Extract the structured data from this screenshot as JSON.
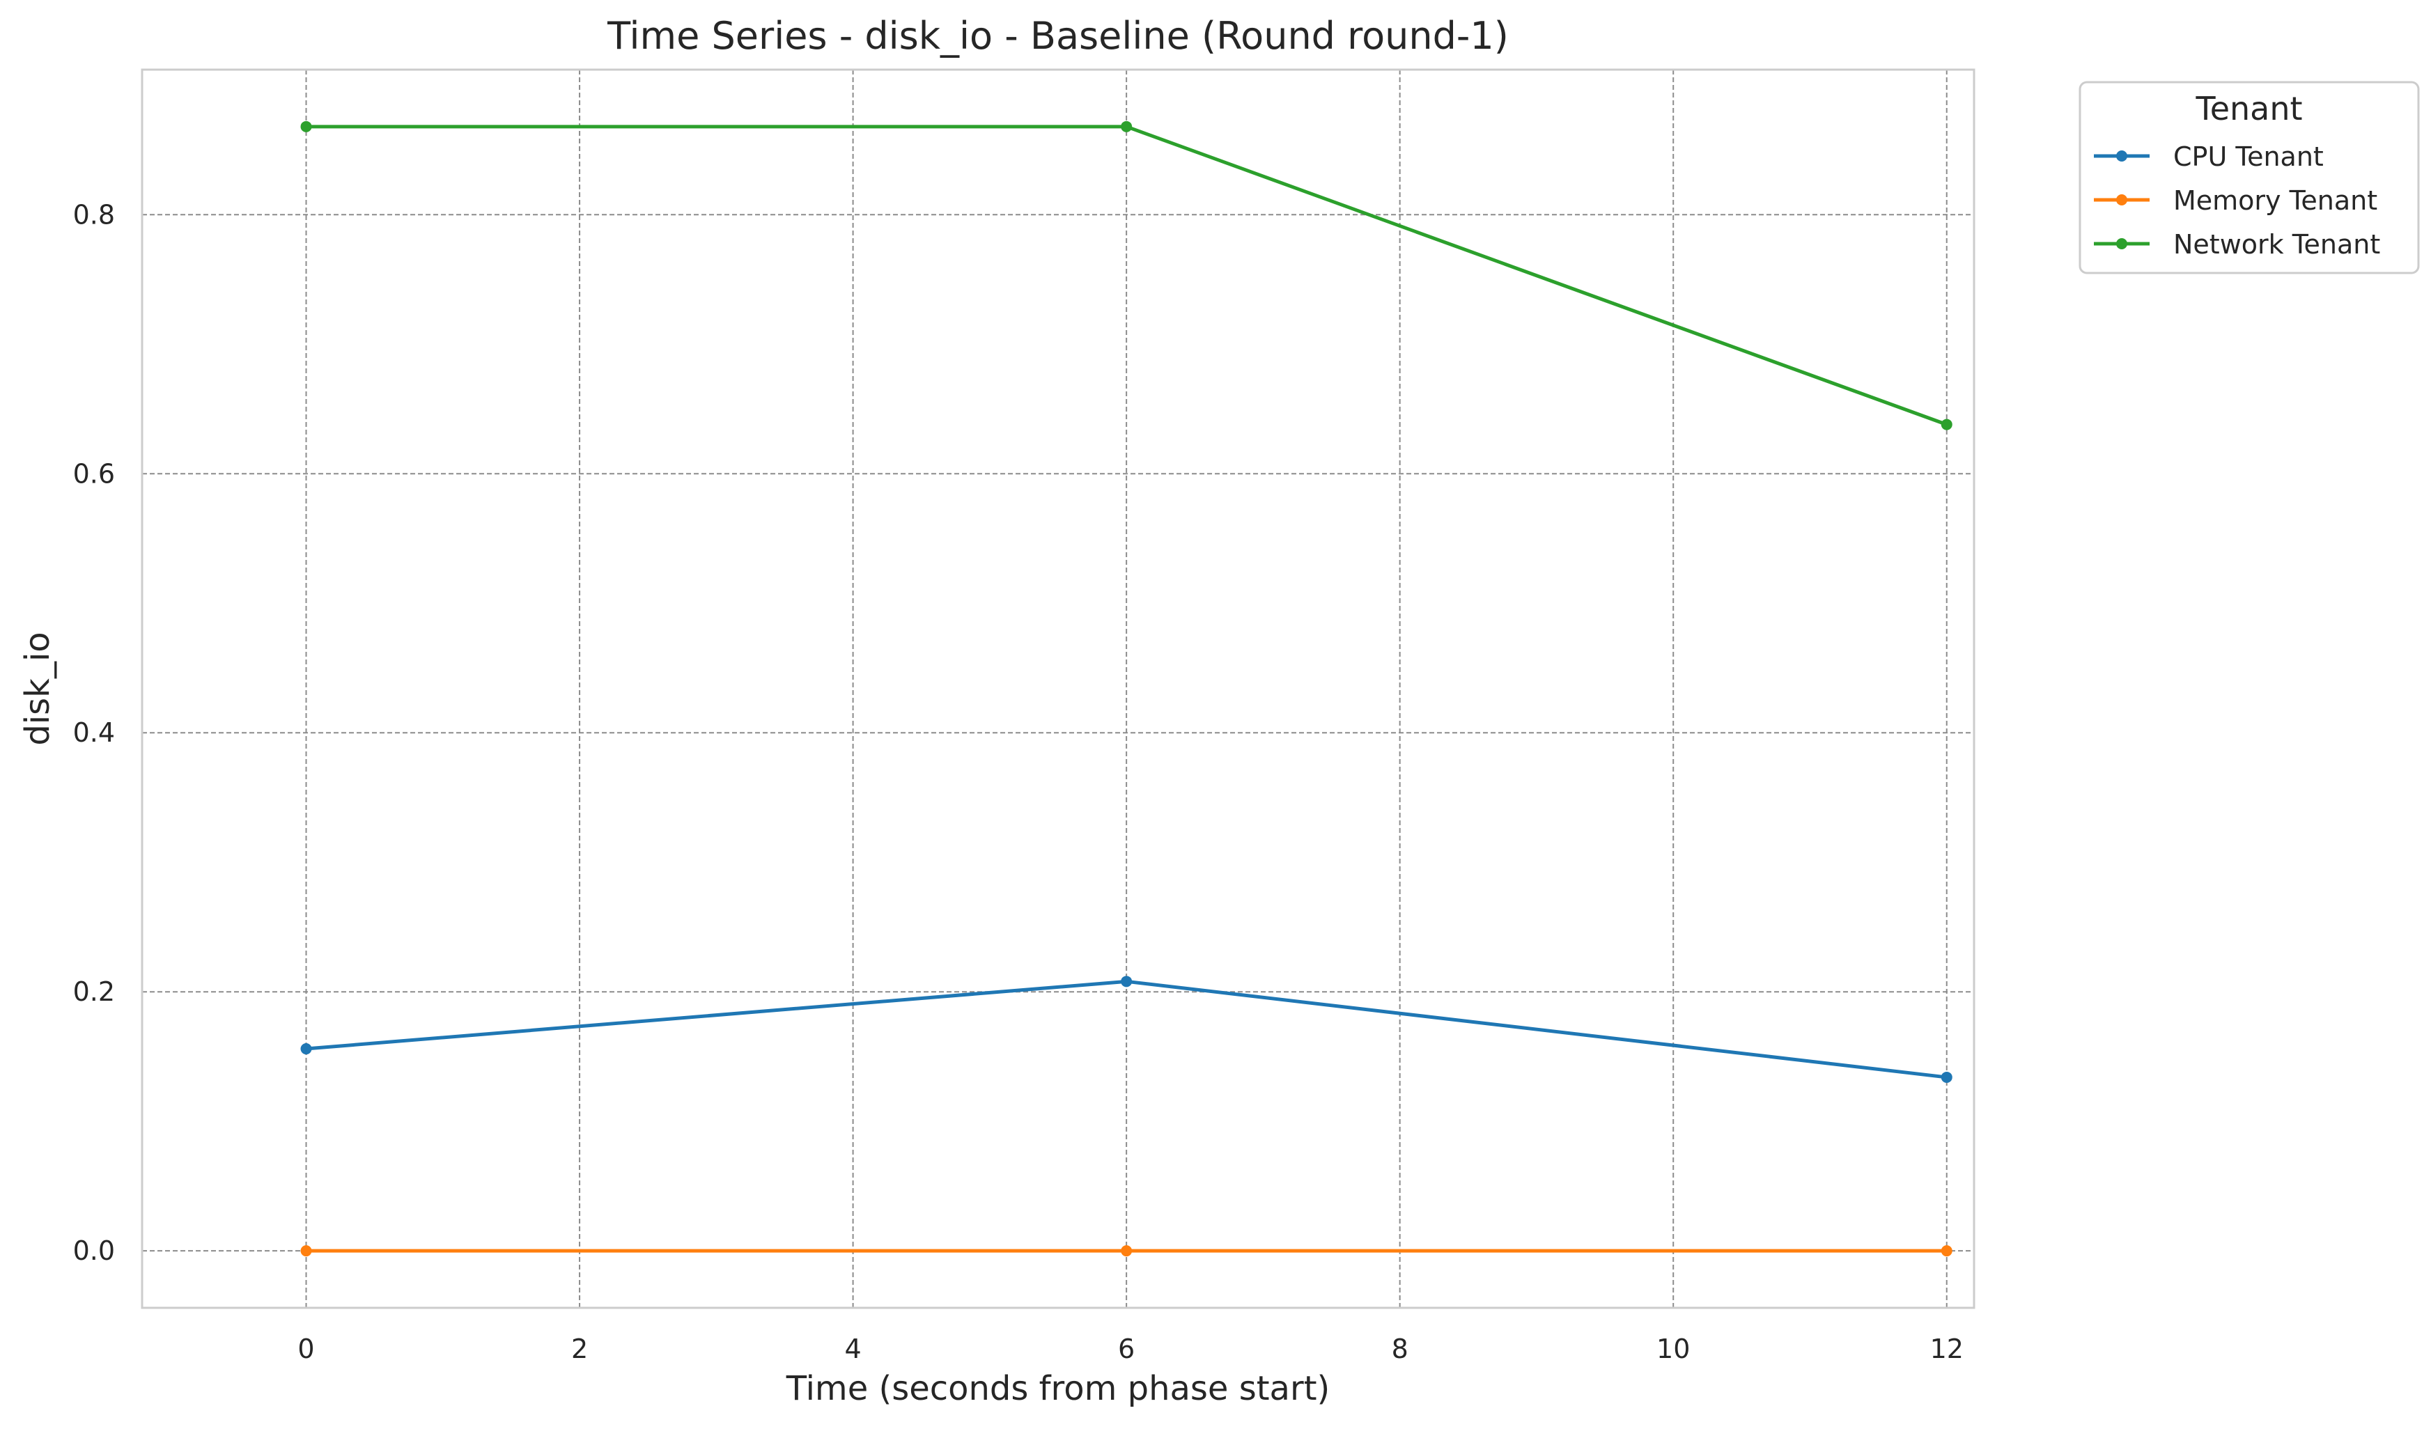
{
  "chart_data": {
    "type": "line",
    "title": "Time Series - disk_io - Baseline (Round round-1)",
    "xlabel": "Time (seconds from phase start)",
    "ylabel": "disk_io",
    "xlim": [
      -1.2,
      12.2
    ],
    "ylim": [
      -0.044,
      0.912
    ],
    "x_ticks": [
      0,
      2,
      4,
      6,
      8,
      10,
      12
    ],
    "x_tick_labels": [
      "0",
      "2",
      "4",
      "6",
      "8",
      "10",
      "12"
    ],
    "y_ticks": [
      0.0,
      0.2,
      0.4,
      0.6,
      0.8
    ],
    "y_tick_labels": [
      "0.0",
      "0.2",
      "0.4",
      "0.6",
      "0.8"
    ],
    "grid": true,
    "legend": {
      "title": "Tenant",
      "placement": "outside-top-right"
    },
    "x": [
      0,
      6,
      12
    ],
    "series": [
      {
        "name": "CPU Tenant",
        "color": "#1f77b4",
        "values": [
          0.156,
          0.208,
          0.134
        ]
      },
      {
        "name": "Memory Tenant",
        "color": "#ff7f0e",
        "values": [
          0.0,
          0.0,
          0.0
        ]
      },
      {
        "name": "Network Tenant",
        "color": "#2ca02c",
        "values": [
          0.868,
          0.868,
          0.638
        ]
      }
    ]
  }
}
